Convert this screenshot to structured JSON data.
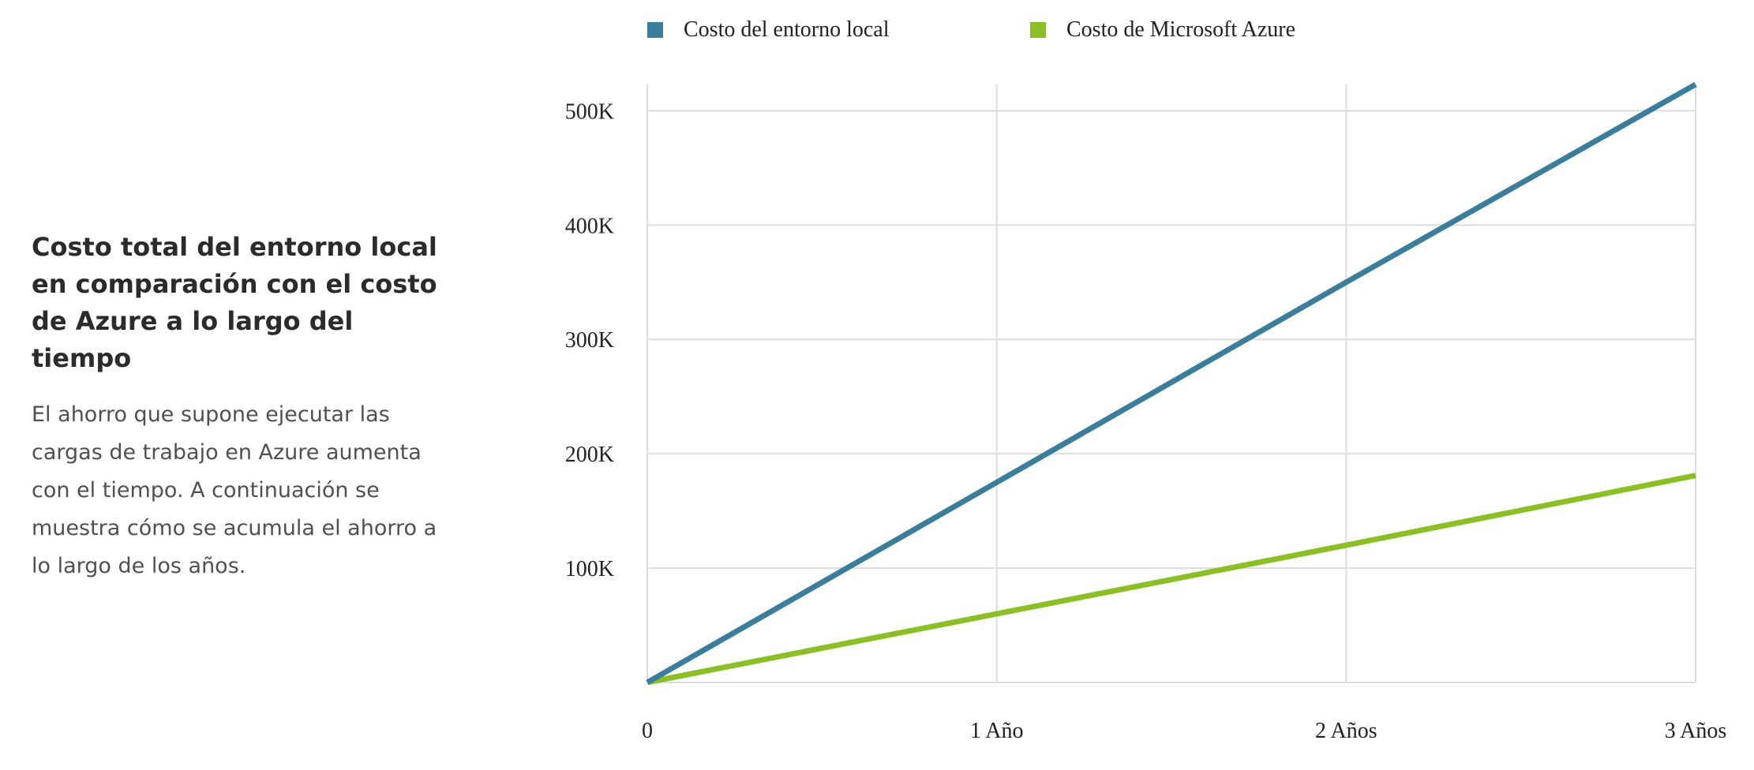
{
  "intro": {
    "title": "Costo total del entorno local en comparación con el costo de Azure a lo largo del tiempo",
    "body": "El ahorro que supone ejecutar las cargas de trabajo en Azure aumenta con el tiempo. A continuación se muestra cómo se acumula el ahorro a lo largo de los años."
  },
  "chart_data": {
    "type": "line",
    "title": "",
    "xlabel": "",
    "ylabel": "",
    "x": [
      0,
      1,
      2,
      3
    ],
    "x_tick_labels": [
      "0",
      "1 Año",
      "2 Años",
      "3 Años"
    ],
    "y_ticks": [
      100000,
      200000,
      300000,
      400000,
      500000
    ],
    "y_tick_labels": [
      "100K",
      "200K",
      "300K",
      "400K",
      "500K"
    ],
    "xlim": [
      0,
      3
    ],
    "ylim": [
      0,
      523000
    ],
    "grid": true,
    "legend_position": "top",
    "series": [
      {
        "name": "Costo del entorno local",
        "color": "#3a7e9b",
        "values": [
          0,
          175000,
          350000,
          523000
        ]
      },
      {
        "name": "Costo de Microsoft Azure",
        "color": "#8cbf26",
        "values": [
          0,
          60000,
          120000,
          181000
        ]
      }
    ]
  }
}
